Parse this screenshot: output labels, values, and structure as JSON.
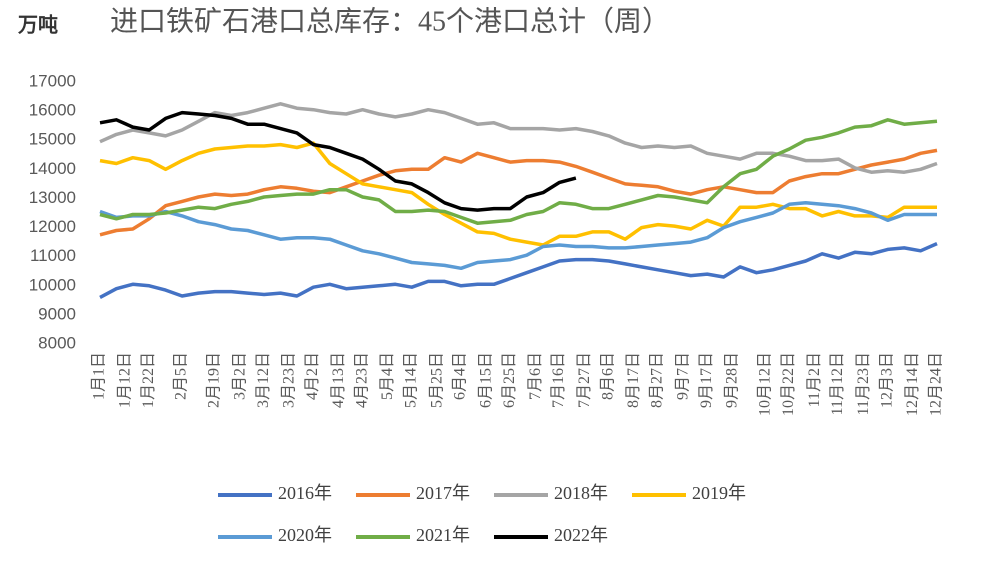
{
  "chart_data": {
    "type": "line",
    "unit": "万吨",
    "title": "进口铁矿石港口总库存：45个港口总计（周）",
    "x": [
      0,
      7,
      14,
      21,
      28,
      35,
      42,
      49,
      56,
      63,
      70,
      77,
      84,
      91,
      98,
      105,
      112,
      119,
      126,
      133,
      140,
      147,
      154,
      161,
      168,
      175,
      182,
      189,
      196,
      203,
      210,
      217,
      224,
      231,
      238,
      245,
      252,
      259,
      266,
      273,
      280,
      287,
      294,
      301,
      308,
      315,
      322,
      329,
      336,
      343,
      350,
      357
    ],
    "xlim": [
      0,
      357
    ],
    "xticks": [
      {
        "value": 0,
        "label": "1月1日"
      },
      {
        "value": 11,
        "label": "1月12日"
      },
      {
        "value": 21,
        "label": "1月22日"
      },
      {
        "value": 35,
        "label": "2月5日"
      },
      {
        "value": 49,
        "label": "2月19日"
      },
      {
        "value": 60,
        "label": "3月2日"
      },
      {
        "value": 70,
        "label": "3月12日"
      },
      {
        "value": 81,
        "label": "3月23日"
      },
      {
        "value": 91,
        "label": "4月2日"
      },
      {
        "value": 102,
        "label": "4月13日"
      },
      {
        "value": 112,
        "label": "4月23日"
      },
      {
        "value": 123,
        "label": "5月4日"
      },
      {
        "value": 133,
        "label": "5月14日"
      },
      {
        "value": 144,
        "label": "5月25日"
      },
      {
        "value": 154,
        "label": "6月4日"
      },
      {
        "value": 165,
        "label": "6月15日"
      },
      {
        "value": 175,
        "label": "6月25日"
      },
      {
        "value": 186,
        "label": "7月6日"
      },
      {
        "value": 196,
        "label": "7月16日"
      },
      {
        "value": 207,
        "label": "7月27日"
      },
      {
        "value": 217,
        "label": "8月6日"
      },
      {
        "value": 228,
        "label": "8月17日"
      },
      {
        "value": 238,
        "label": "8月27日"
      },
      {
        "value": 249,
        "label": "9月7日"
      },
      {
        "value": 259,
        "label": "9月17日"
      },
      {
        "value": 270,
        "label": "9月28日"
      },
      {
        "value": 284,
        "label": "10月12日"
      },
      {
        "value": 294,
        "label": "10月22日"
      },
      {
        "value": 305,
        "label": "11月2日"
      },
      {
        "value": 315,
        "label": "11月12日"
      },
      {
        "value": 326,
        "label": "11月23日"
      },
      {
        "value": 336,
        "label": "12月3日"
      },
      {
        "value": 347,
        "label": "12月14日"
      },
      {
        "value": 357,
        "label": "12月24日"
      }
    ],
    "ylim": [
      8000,
      17000
    ],
    "yticks": [
      8000,
      9000,
      10000,
      11000,
      12000,
      13000,
      14000,
      15000,
      16000,
      17000
    ],
    "grid": false,
    "legend": "bottom",
    "series": [
      {
        "name": "2016年",
        "color": "#4472c4",
        "values": [
          9600,
          9900,
          10050,
          10000,
          9850,
          9650,
          9750,
          9800,
          9800,
          9750,
          9700,
          9750,
          9650,
          9950,
          10050,
          9900,
          9950,
          10000,
          10050,
          9950,
          10150,
          10150,
          10000,
          10050,
          10050,
          10250,
          10450,
          10650,
          10850,
          10900,
          10900,
          10850,
          10750,
          10650,
          10550,
          10450,
          10350,
          10400,
          10300,
          10650,
          10450,
          10550,
          10700,
          10850,
          11100,
          10950,
          11150,
          11100,
          11250,
          11300,
          11200,
          11450
        ]
      },
      {
        "name": "2017年",
        "color": "#ed7d31",
        "values": [
          11750,
          11900,
          11950,
          12300,
          12750,
          12900,
          13050,
          13150,
          13100,
          13150,
          13300,
          13400,
          13350,
          13250,
          13200,
          13400,
          13600,
          13800,
          13950,
          14000,
          14000,
          14400,
          14250,
          14550,
          14400,
          14250,
          14300,
          14300,
          14250,
          14100,
          13900,
          13700,
          13500,
          13450,
          13400,
          13250,
          13150,
          13300,
          13400,
          13300,
          13200,
          13200,
          13600,
          13750,
          13850,
          13850,
          14000,
          14150,
          14250,
          14350,
          14550,
          14650
        ]
      },
      {
        "name": "2018年",
        "color": "#a5a5a5",
        "values": [
          14950,
          15200,
          15350,
          15250,
          15150,
          15350,
          15650,
          15950,
          15850,
          15950,
          16100,
          16250,
          16100,
          16050,
          15950,
          15900,
          16050,
          15900,
          15800,
          15900,
          16050,
          15950,
          15750,
          15550,
          15600,
          15400,
          15400,
          15400,
          15350,
          15400,
          15300,
          15150,
          14900,
          14750,
          14800,
          14750,
          14800,
          14550,
          14450,
          14350,
          14550,
          14550,
          14450,
          14300,
          14300,
          14350,
          14050,
          13900,
          13950,
          13900,
          14000,
          14200
        ]
      },
      {
        "name": "2019年",
        "color": "#ffc000",
        "values": [
          14300,
          14200,
          14400,
          14300,
          14000,
          14300,
          14550,
          14700,
          14750,
          14800,
          14800,
          14850,
          14750,
          14900,
          14200,
          13850,
          13500,
          13400,
          13300,
          13200,
          12800,
          12450,
          12150,
          11850,
          11800,
          11600,
          11500,
          11400,
          11700,
          11700,
          11850,
          11850,
          11600,
          12000,
          12100,
          12050,
          11950,
          12250,
          12050,
          12700,
          12700,
          12800,
          12650,
          12650,
          12400,
          12550,
          12400,
          12400,
          12350,
          12700,
          12700,
          12700
        ]
      },
      {
        "name": "2020年",
        "color": "#5b9bd5",
        "values": [
          12550,
          12350,
          12400,
          12400,
          12550,
          12400,
          12200,
          12100,
          11950,
          11900,
          11750,
          11600,
          11650,
          11650,
          11600,
          11400,
          11200,
          11100,
          10950,
          10800,
          10750,
          10700,
          10600,
          10800,
          10850,
          10900,
          11050,
          11350,
          11400,
          11350,
          11350,
          11300,
          11300,
          11350,
          11400,
          11450,
          11500,
          11650,
          12000,
          12200,
          12350,
          12500,
          12800,
          12850,
          12800,
          12750,
          12650,
          12500,
          12250,
          12450,
          12450,
          12450
        ]
      },
      {
        "name": "2021年",
        "color": "#70ad47",
        "values": [
          12450,
          12300,
          12450,
          12450,
          12500,
          12600,
          12700,
          12650,
          12800,
          12900,
          13050,
          13100,
          13150,
          13150,
          13300,
          13300,
          13050,
          12950,
          12550,
          12550,
          12600,
          12550,
          12350,
          12150,
          12200,
          12250,
          12450,
          12550,
          12850,
          12800,
          12650,
          12650,
          12800,
          12950,
          13100,
          13050,
          12950,
          12850,
          13400,
          13850,
          14000,
          14450,
          14700,
          15000,
          15100,
          15250,
          15450,
          15500,
          15700,
          15550,
          15600,
          15650
        ]
      },
      {
        "name": "2022年",
        "color": "#000000",
        "values": [
          15600,
          15700,
          15450,
          15350,
          15750,
          15950,
          15900,
          15850,
          15750,
          15550,
          15550,
          15400,
          15250,
          14850,
          14750,
          14550,
          14350,
          14000,
          13600,
          13500,
          13200,
          12850,
          12650,
          12600,
          12650,
          12650,
          13050,
          13200,
          13550,
          13700,
          null,
          null,
          null,
          null,
          null,
          null,
          null,
          null,
          null,
          null,
          null,
          null,
          null,
          null,
          null,
          null,
          null,
          null,
          null,
          null,
          null,
          null
        ]
      }
    ]
  }
}
